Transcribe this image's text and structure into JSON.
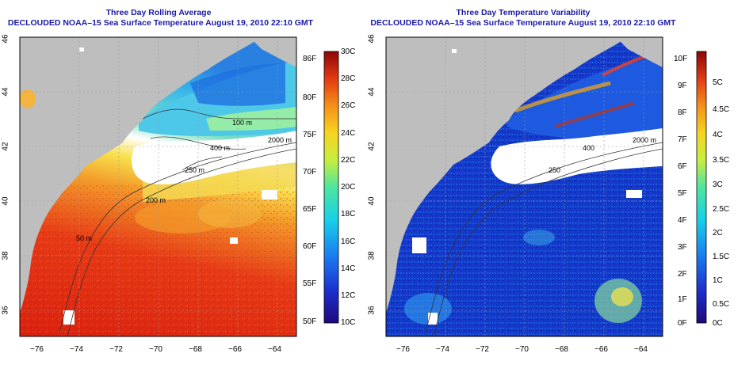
{
  "panels": {
    "left": {
      "title": "Three Day Rolling Average",
      "subtitle": "DECLOUDED NOAA–15 Sea Surface Temperature August 19, 2010 22:10 GMT",
      "contour_labels": [
        "100 m",
        "400 m",
        "2000 m",
        "250 m",
        "200 m",
        "50 m"
      ],
      "colorbar_left_labels": [
        "86F",
        "80F",
        "75F",
        "70F",
        "65F",
        "60F",
        "55F",
        "50F"
      ],
      "colorbar_right_labels": [
        "30C",
        "28C",
        "26C",
        "24C",
        "22C",
        "20C",
        "18C",
        "16C",
        "14C",
        "12C",
        "10C"
      ]
    },
    "right": {
      "title": "Three Day Temperature Variability",
      "subtitle": "DECLOUDED NOAA–15 Sea Surface Temperature August 19, 2010 22:10 GMT",
      "contour_labels": [
        "400",
        "2000 m",
        "250"
      ],
      "colorbar_left_labels": [
        "10F",
        "9F",
        "8F",
        "7F",
        "6F",
        "5F",
        "4F",
        "3F",
        "2F",
        "1F",
        "0F"
      ],
      "colorbar_right_labels": [
        "5C",
        "4.5C",
        "4C",
        "3.5C",
        "3C",
        "2.5C",
        "2C",
        "1.5C",
        "1C",
        "0.5C",
        "0C"
      ]
    }
  },
  "axes": {
    "x_ticks": [
      "−76",
      "−74",
      "−72",
      "−70",
      "−68",
      "−66",
      "−64"
    ],
    "y_ticks": [
      "46",
      "44",
      "42",
      "40",
      "38",
      "36"
    ],
    "x_range": [
      -77,
      -63
    ],
    "y_range": [
      35,
      46
    ]
  },
  "colors": {
    "title": "#1a1aa6",
    "land": "#bebebe",
    "cloud_mask": "#ffffff"
  }
}
